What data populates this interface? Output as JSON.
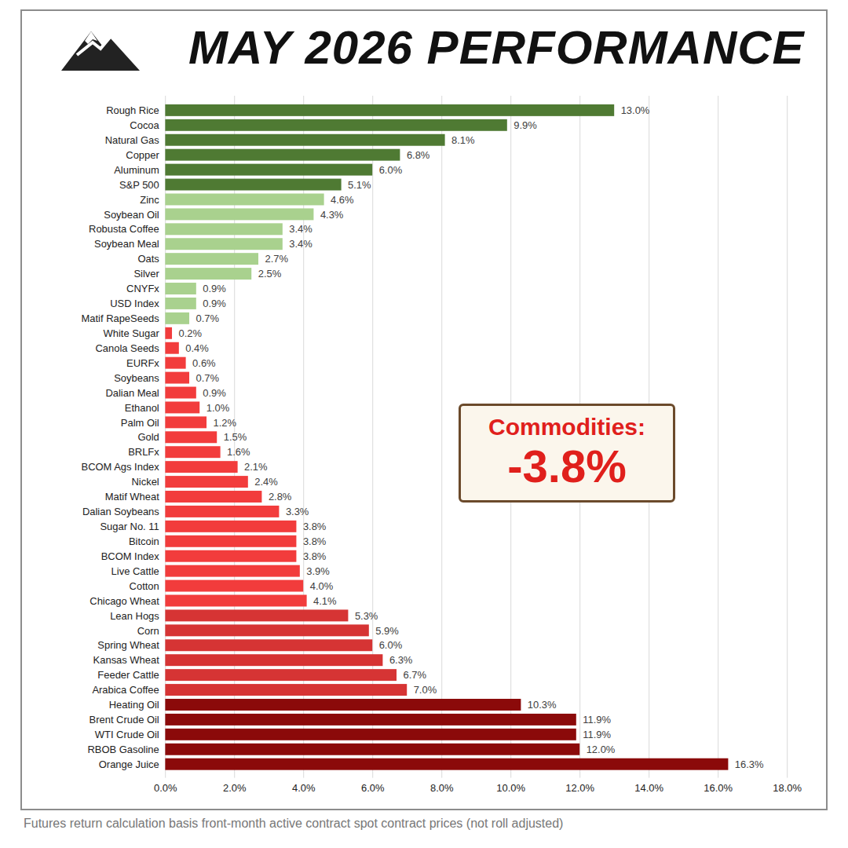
{
  "chart_data": {
    "type": "bar",
    "title": "MAY 2026 PERFORMANCE",
    "caption": "Futures return calculation basis front-month active contract spot contract prices (not roll adjusted)",
    "annotations": [
      "Commodities:",
      "-3.8%"
    ],
    "orientation": "horizontal",
    "data_labels": true,
    "grid": true,
    "categories": [
      "Rough Rice",
      "Cocoa",
      "Natural Gas",
      "Copper",
      "Aluminum",
      "S&P 500",
      "Zinc",
      "Soybean Oil",
      "Robusta Coffee",
      "Soybean Meal",
      "Oats",
      "Silver",
      "CNYFx",
      "USD Index",
      "Matif RapeSeeds",
      "White Sugar",
      "Canola Seeds",
      "EURFx",
      "Soybeans",
      "Dalian Meal",
      "Ethanol",
      "Palm Oil",
      "Gold",
      "BRLFx",
      "BCOM Ags Index",
      "Nickel",
      "Matif Wheat",
      "Dalian Soybeans",
      "Sugar No. 11",
      "Bitcoin",
      "BCOM Index",
      "Live Cattle",
      "Cotton",
      "Chicago Wheat",
      "Lean Hogs",
      "Corn",
      "Spring Wheat",
      "Kansas Wheat",
      "Feeder Cattle",
      "Arabica Coffee",
      "Heating Oil",
      "Brent Crude Oil",
      "WTI Crude Oil",
      "RBOB Gasoline",
      "Orange Juice"
    ],
    "values": [
      13.0,
      9.9,
      8.1,
      6.8,
      6.0,
      5.1,
      4.6,
      4.3,
      3.4,
      3.4,
      2.7,
      2.5,
      0.9,
      0.9,
      0.7,
      0.2,
      0.4,
      0.6,
      0.7,
      0.9,
      1.0,
      1.2,
      1.5,
      1.6,
      2.1,
      2.4,
      2.8,
      3.3,
      3.8,
      3.8,
      3.8,
      3.9,
      4.0,
      4.1,
      5.3,
      5.9,
      6.0,
      6.3,
      6.7,
      7.0,
      10.3,
      11.9,
      11.9,
      12.0,
      16.3
    ],
    "value_labels": [
      "13.0%",
      "9.9%",
      "8.1%",
      "6.8%",
      "6.0%",
      "5.1%",
      "4.6%",
      "4.3%",
      "3.4%",
      "3.4%",
      "2.7%",
      "2.5%",
      "0.9%",
      "0.9%",
      "0.7%",
      "0.2%",
      "0.4%",
      "0.6%",
      "0.7%",
      "0.9%",
      "1.0%",
      "1.2%",
      "1.5%",
      "1.6%",
      "2.1%",
      "2.4%",
      "2.8%",
      "3.3%",
      "3.8%",
      "3.8%",
      "3.8%",
      "3.9%",
      "4.0%",
      "4.1%",
      "5.3%",
      "5.9%",
      "6.0%",
      "6.3%",
      "6.7%",
      "7.0%",
      "10.3%",
      "11.9%",
      "11.9%",
      "12.0%",
      "16.3%"
    ],
    "colors": [
      "#4f7a33",
      "#4f7a33",
      "#4f7a33",
      "#4f7a33",
      "#4f7a33",
      "#4f7a33",
      "#a9d18e",
      "#a9d18e",
      "#a9d18e",
      "#a9d18e",
      "#a9d18e",
      "#a9d18e",
      "#a9d18e",
      "#a9d18e",
      "#a9d18e",
      "#f23c3c",
      "#f23c3c",
      "#f23c3c",
      "#f23c3c",
      "#f23c3c",
      "#f23c3c",
      "#f23c3c",
      "#f23c3c",
      "#f23c3c",
      "#f23c3c",
      "#f23c3c",
      "#f23c3c",
      "#f23c3c",
      "#f23c3c",
      "#f23c3c",
      "#f23c3c",
      "#f23c3c",
      "#f23c3c",
      "#f23c3c",
      "#d63434",
      "#d63434",
      "#d63434",
      "#d63434",
      "#d63434",
      "#d63434",
      "#8b0a0a",
      "#8b0a0a",
      "#8b0a0a",
      "#8b0a0a",
      "#8b0a0a"
    ],
    "xlim": [
      0,
      18
    ],
    "xticks": [
      {
        "value": 0,
        "label": "0.0%"
      },
      {
        "value": 2,
        "label": "2.0%"
      },
      {
        "value": 4,
        "label": "4.0%"
      },
      {
        "value": 6,
        "label": "6.0%"
      },
      {
        "value": 8,
        "label": "8.0%"
      },
      {
        "value": 10,
        "label": "10.0%"
      },
      {
        "value": 12,
        "label": "12.0%"
      },
      {
        "value": 14,
        "label": "14.0%"
      },
      {
        "value": 16,
        "label": "16.0%"
      },
      {
        "value": 18,
        "label": "18.0%"
      }
    ]
  }
}
